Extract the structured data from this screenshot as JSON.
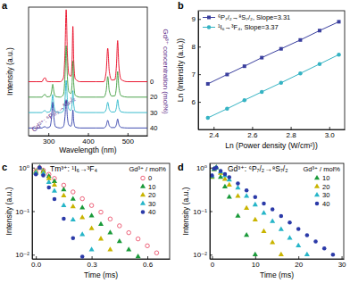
{
  "chart_data": [
    {
      "type": "line",
      "annotations": [
        "a",
        "Gd³⁺: ⁶P₇/₂→⁸S₇/₂"
      ],
      "x_label": "Wavelength (nm)",
      "y_label": "Intensity (a.u.)",
      "y2_label": "Gd³⁺ concentration (mol%)",
      "x": [
        250,
        270,
        284,
        288,
        292,
        296,
        304,
        308,
        311,
        314,
        318,
        330,
        338,
        342,
        345,
        348,
        352,
        357,
        360,
        362,
        364,
        368,
        380,
        420,
        440,
        446,
        450,
        454,
        460,
        468,
        472,
        475,
        478,
        484,
        500,
        550
      ],
      "series": [
        {
          "name": "0",
          "color": "#e8001c",
          "values": [
            42,
            42,
            42,
            44.4,
            45,
            42.3,
            42,
            42,
            42,
            42,
            42,
            42,
            44.8,
            64.4,
            98,
            64.4,
            47.6,
            46.3,
            59.2,
            85,
            59.2,
            44.2,
            42,
            42,
            42,
            49.8,
            68,
            49.8,
            43.3,
            43.6,
            54.8,
            74,
            54.8,
            43.6,
            42,
            42
          ]
        },
        {
          "name": "20",
          "color": "#3a9a3a",
          "values": [
            30,
            30,
            30,
            31.6,
            32,
            30.2,
            30.5,
            34,
            40,
            34,
            30.5,
            30,
            32,
            46,
            70,
            46,
            34,
            32.8,
            41.2,
            58,
            41.2,
            31.4,
            30,
            30,
            30,
            34.8,
            46,
            34.8,
            30.8,
            31,
            38,
            50,
            38,
            31,
            30,
            30
          ]
        },
        {
          "name": "30",
          "color": "#26b5c8",
          "values": [
            18,
            18,
            18,
            19.2,
            19.5,
            18.2,
            18.7,
            23.6,
            32,
            23.6,
            18.7,
            18,
            19.3,
            28,
            43,
            28,
            20.5,
            19.7,
            24.8,
            35,
            24.8,
            18.9,
            18,
            18,
            18,
            20.4,
            26,
            20.4,
            18.4,
            18.5,
            22,
            28,
            22,
            18.5,
            18,
            18
          ]
        },
        {
          "name": "40",
          "color": "#2b3aa8",
          "values": [
            6,
            6,
            6,
            6.8,
            7,
            6.1,
            7,
            14,
            26,
            14,
            7,
            6,
            7.1,
            14.8,
            28,
            14.8,
            8.2,
            7.4,
            11.6,
            20,
            11.6,
            6.7,
            6,
            6,
            6,
            7.8,
            12,
            7.8,
            6.3,
            6.4,
            8.8,
            13,
            8.8,
            6.4,
            6,
            6
          ]
        }
      ],
      "xlim": [
        250,
        550
      ],
      "xticks": [
        300,
        400,
        500
      ],
      "ylim": [
        0,
        100
      ],
      "tick_labels": "x"
    },
    {
      "type": "line",
      "annotations": [
        "b"
      ],
      "x_label": "Ln (Power density (W/cm²))",
      "y_label": "Ln (Intensity (a.u.))",
      "x": [
        2.37,
        2.47,
        2.56,
        2.65,
        2.75,
        2.85,
        2.95,
        3.05
      ],
      "series": [
        {
          "name": "⁶P₇/₂→⁸S₇/₂, Slope=3.31",
          "color": "#3a3f9e",
          "marker": "square",
          "line_style": "solid",
          "values": [
            6.65,
            6.99,
            7.29,
            7.6,
            7.92,
            8.24,
            8.58,
            8.9
          ]
        },
        {
          "name": "¹I₆→³F₄, Slope=3.37",
          "color": "#35b3c3",
          "marker": "circle",
          "line_style": "solid",
          "values": [
            5.42,
            5.75,
            6.06,
            6.36,
            6.69,
            7.03,
            7.37,
            7.71
          ]
        }
      ],
      "xlim": [
        2.32,
        3.08
      ],
      "xticks": [
        2.4,
        2.6,
        2.8,
        {
          "value": 3,
          "label": "3.0"
        }
      ],
      "ylim": [
        5,
        9.3
      ],
      "yticks": [
        6,
        7,
        8,
        9
      ],
      "legend": "upper-left"
    },
    {
      "type": "scatter",
      "annotations": [
        "c"
      ],
      "title": "Tm³⁺: ¹I₆→³F₄",
      "x_label": "Time (ms)",
      "y_label": "Intensity (a.u.)",
      "legend_title": "Gd³⁺ / mol%",
      "x": [
        0,
        0.02,
        0.04,
        0.07,
        0.1,
        0.15,
        0.2,
        0.25,
        0.3,
        0.35,
        0.4,
        0.45,
        0.5,
        0.55,
        0.6,
        0.65,
        0.7
      ],
      "series": [
        {
          "name": "0",
          "color": "#e83e5a",
          "marker": "open-circle",
          "values": [
            0.85,
            1.0,
            0.87,
            0.7,
            0.565,
            0.395,
            0.276,
            0.193,
            0.135,
            0.095,
            0.066,
            0.046,
            0.032,
            0.023,
            0.016,
            0.011,
            null
          ]
        },
        {
          "name": "10",
          "color": "#1a9a3a",
          "marker": "triangle",
          "values": [
            0.8,
            1.0,
            0.83,
            0.63,
            0.48,
            0.31,
            0.19,
            0.12,
            0.078,
            0.05,
            0.032,
            0.02,
            0.013,
            0.009,
            null,
            null,
            null
          ]
        },
        {
          "name": "20",
          "color": "#c9b400",
          "marker": "triangle",
          "values": [
            0.78,
            1.0,
            0.79,
            0.56,
            0.4,
            0.225,
            0.126,
            0.071,
            0.04,
            0.023,
            0.013,
            null,
            null,
            null,
            null,
            null,
            null
          ]
        },
        {
          "name": "30",
          "color": "#26b5c8",
          "marker": "triangle",
          "values": [
            0.75,
            1.0,
            0.73,
            0.46,
            0.29,
            0.135,
            0.063,
            0.029,
            0.013,
            null,
            null,
            null,
            null,
            null,
            null,
            null,
            null
          ]
        },
        {
          "name": "40",
          "color": "#2b3aa8",
          "marker": "circle",
          "values": [
            0.7,
            1.0,
            0.66,
            0.35,
            0.19,
            0.067,
            0.024,
            0.009,
            null,
            null,
            null,
            null,
            null,
            null,
            null,
            null,
            null
          ]
        }
      ],
      "xlim": [
        -0.02,
        0.72
      ],
      "xticks": [
        {
          "value": 0,
          "label": "0.0"
        },
        0.3,
        0.6
      ],
      "ylim": [
        0.008,
        1.25
      ],
      "yticks": [
        {
          "value": 0.01,
          "label": "10⁻²"
        },
        {
          "value": 0.1,
          "label": "10⁻¹"
        },
        {
          "value": 1,
          "label": "10⁰"
        }
      ],
      "log": "y",
      "legend": "upper-right"
    },
    {
      "type": "scatter",
      "annotations": [
        "d"
      ],
      "title": "Gd³⁺: ⁶P₇/₂→⁸S₇/₂",
      "x_label": "Time (ms)",
      "y_label": "Intensity (a.u.)",
      "legend_title": "Gd³⁺ / mol%",
      "x": [
        0,
        0.5,
        1,
        2,
        3,
        4,
        6,
        8,
        10,
        12,
        14,
        16,
        18,
        20,
        22,
        24,
        26,
        28,
        30
      ],
      "series": [
        {
          "name": "10",
          "color": "#1a9a3a",
          "marker": "triangle",
          "values": [
            0.6,
            0.9,
            1.0,
            0.6,
            0.36,
            0.21,
            0.077,
            0.028,
            0.01,
            null,
            null,
            null,
            null,
            null,
            null,
            null,
            null,
            null,
            null
          ]
        },
        {
          "name": "20",
          "color": "#c9b400",
          "marker": "triangle",
          "values": [
            0.62,
            0.92,
            1.0,
            0.74,
            0.54,
            0.4,
            0.22,
            0.117,
            0.063,
            0.034,
            0.019,
            0.01,
            null,
            null,
            null,
            null,
            null,
            null,
            null
          ]
        },
        {
          "name": "30",
          "color": "#26b5c8",
          "marker": "triangle",
          "values": [
            0.64,
            0.93,
            1.0,
            0.8,
            0.65,
            0.52,
            0.34,
            0.22,
            0.14,
            0.09,
            0.058,
            0.038,
            0.024,
            0.016,
            0.01,
            null,
            null,
            null,
            null
          ]
        },
        {
          "name": "40",
          "color": "#2b3aa8",
          "marker": "circle",
          "values": [
            0.66,
            0.94,
            1.0,
            0.84,
            0.71,
            0.6,
            0.43,
            0.3,
            0.21,
            0.15,
            0.11,
            0.077,
            0.055,
            0.039,
            0.028,
            0.02,
            0.014,
            0.01,
            null
          ]
        }
      ],
      "xlim": [
        -0.5,
        30.5
      ],
      "xticks": [
        0,
        10,
        20,
        30
      ],
      "ylim": [
        0.008,
        1.25
      ],
      "yticks": [
        {
          "value": 0.01,
          "label": "10⁻²"
        },
        {
          "value": 0.1,
          "label": "10⁻¹"
        },
        {
          "value": 1,
          "label": "10⁰"
        }
      ],
      "log": "y",
      "legend": "upper-right"
    }
  ]
}
